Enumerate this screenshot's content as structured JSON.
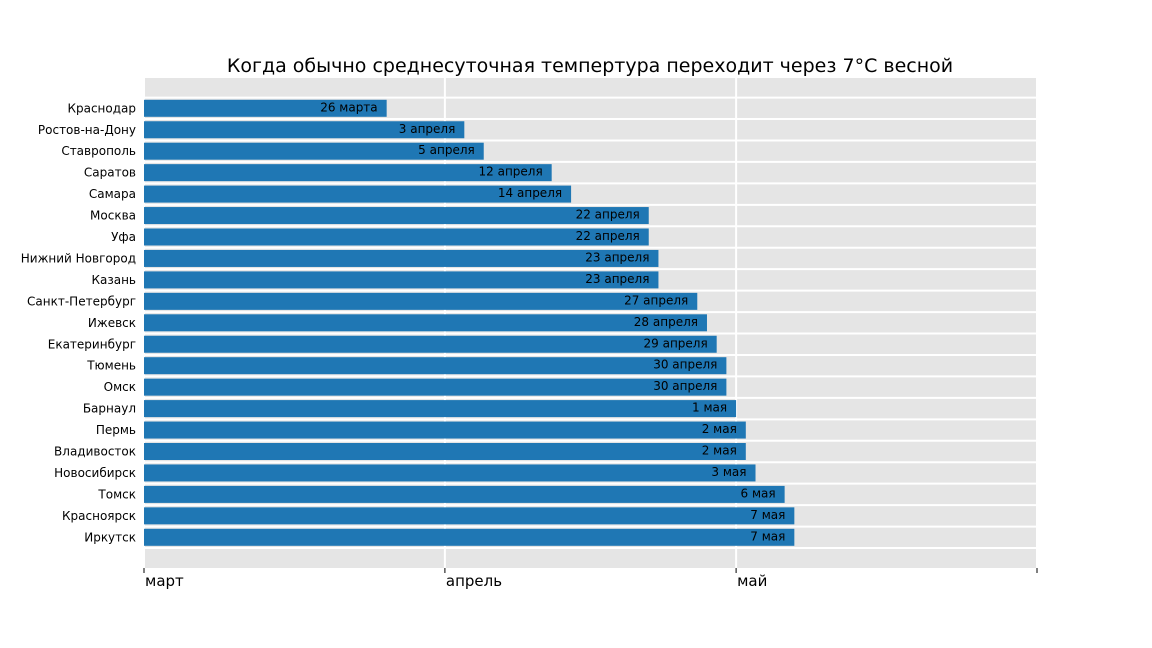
{
  "chart_data": {
    "type": "bar",
    "orientation": "horizontal",
    "title": "Когда обычно среднесуточная темпертура переходит через 7°C весной",
    "xlabel": "",
    "ylabel": "",
    "grid": true,
    "bar_color": "#1f77b4",
    "background_color": "#e5e5e5",
    "grid_color": "#ffffff",
    "x_axis": {
      "unit": "days since 1 March",
      "range": [
        0,
        92
      ],
      "ticks": [
        {
          "value": 0,
          "label": "март"
        },
        {
          "value": 31,
          "label": "апрель"
        },
        {
          "value": 61,
          "label": "май"
        },
        {
          "value": 92,
          "label": ""
        }
      ]
    },
    "categories": [
      "Краснодар",
      "Ростов-на-Дону",
      "Ставрополь",
      "Саратов",
      "Самара",
      "Москва",
      "Уфа",
      "Нижний Новгород",
      "Казань",
      "Санкт-Петербург",
      "Ижевск",
      "Екатеринбург",
      "Тюмень",
      "Омск",
      "Барнаул",
      "Пермь",
      "Владивосток",
      "Новосибирск",
      "Томск",
      "Красноярск",
      "Иркутск"
    ],
    "values": [
      25,
      33,
      35,
      42,
      44,
      52,
      52,
      53,
      53,
      57,
      58,
      59,
      60,
      60,
      61,
      62,
      62,
      63,
      66,
      67,
      67
    ],
    "data_labels": [
      "26 марта",
      "3 апреля",
      "5 апреля",
      "12 апреля",
      "14 апреля",
      "22 апреля",
      "22 апреля",
      "23 апреля",
      "23 апреля",
      "27 апреля",
      "28 апреля",
      "29 апреля",
      "30 апреля",
      "30 апреля",
      "1 мая",
      "2 мая",
      "2 мая",
      "3 мая",
      "6 мая",
      "7 мая",
      "7 мая"
    ]
  }
}
